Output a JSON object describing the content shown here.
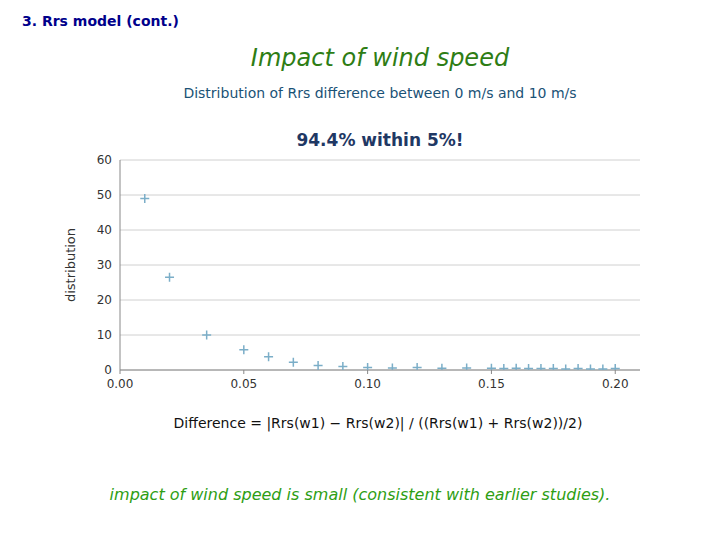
{
  "chart_data": {
    "type": "scatter",
    "title": "Impact of wind speed",
    "subtitle": "Distribution of Rrs difference between 0 m/s and 10 m/s",
    "ylabel": "distribution",
    "annotations": [
      "3. Rrs model (cont.)",
      "94.4%  within 5%!",
      "Difference = |Rrs(w1) − Rrs(w2)| / ((Rrs(w1) + Rrs(w2))/2)",
      "impact of wind speed is small (consistent with earlier studies)."
    ],
    "x": [
      0.01,
      0.02,
      0.035,
      0.05,
      0.06,
      0.07,
      0.08,
      0.09,
      0.1,
      0.11,
      0.12,
      0.13,
      0.14,
      0.15,
      0.155,
      0.16,
      0.165,
      0.17,
      0.175,
      0.18,
      0.185,
      0.19,
      0.195,
      0.2
    ],
    "values": [
      49,
      26.5,
      10,
      5.8,
      3.8,
      2.2,
      1.3,
      1.0,
      0.7,
      0.6,
      0.7,
      0.5,
      0.6,
      0.5,
      0.4,
      0.5,
      0.4,
      0.4,
      0.4,
      0.3,
      0.4,
      0.3,
      0.3,
      0.4
    ],
    "color": "#7baec8",
    "marker": "plus",
    "xlim": [
      0,
      0.21
    ],
    "ylim": [
      0,
      60
    ],
    "xticks": [
      {
        "value": 0,
        "label": "0.00"
      },
      {
        "value": 0.05,
        "label": "0.05"
      },
      {
        "value": 0.1,
        "label": "0.10"
      },
      {
        "value": 0.15,
        "label": "0.15"
      },
      {
        "value": 0.2,
        "label": "0.20"
      }
    ],
    "yticks": [
      0,
      10,
      20,
      30,
      40,
      50,
      60
    ],
    "grid": true
  }
}
